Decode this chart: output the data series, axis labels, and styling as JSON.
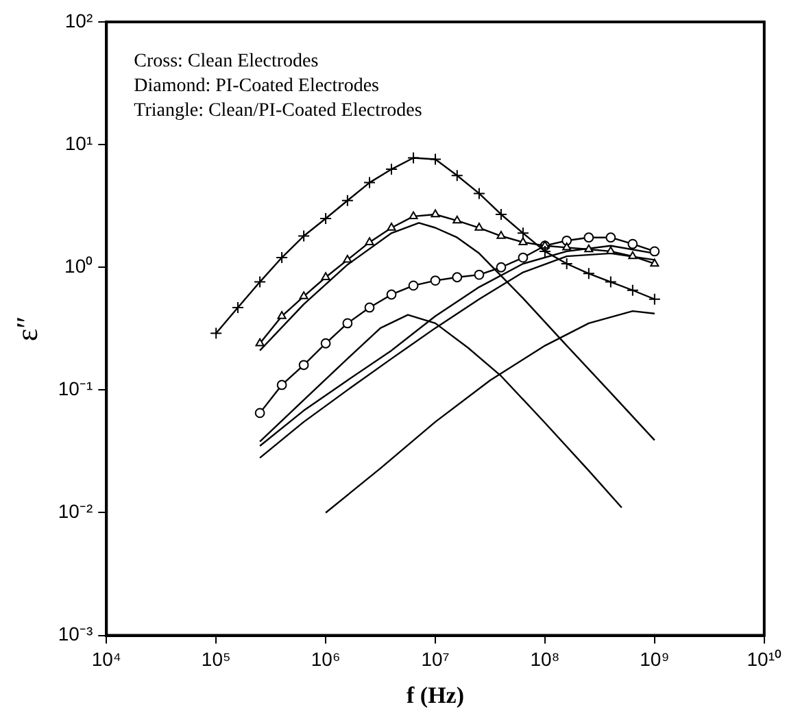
{
  "chart_data": {
    "type": "line",
    "xlabel": "f (Hz)",
    "ylabel": "ε″",
    "log": "xy",
    "grid": false,
    "legend": false,
    "xlim": [
      10000,
      10000000000
    ],
    "ylim": [
      0.001,
      100
    ],
    "xticks": [
      {
        "value": 10000,
        "label": "10⁴"
      },
      {
        "value": 100000,
        "label": "10⁵"
      },
      {
        "value": 1000000,
        "label": "10⁶"
      },
      {
        "value": 10000000,
        "label": "10⁷"
      },
      {
        "value": 100000000,
        "label": "10⁸"
      },
      {
        "value": 1000000000,
        "label": "10⁹"
      },
      {
        "value": 10000000000,
        "label": "10¹⁰"
      }
    ],
    "yticks": [
      {
        "value": 0.001,
        "label": "10⁻³"
      },
      {
        "value": 0.01,
        "label": "10⁻²"
      },
      {
        "value": 0.1,
        "label": "10⁻¹"
      },
      {
        "value": 1,
        "label": "10⁰"
      },
      {
        "value": 10,
        "label": "10¹"
      },
      {
        "value": 100,
        "label": "10²"
      }
    ],
    "annotations": [
      "Cross: Clean Electrodes",
      "Diamond: PI-Coated Electrodes",
      "Triangle: Clean/PI-Coated Electrodes"
    ],
    "series": [
      {
        "color": "#000000",
        "marker": "cross",
        "x": [
          100000,
          158000,
          251000,
          398000,
          631000,
          1000000,
          1580000,
          2510000,
          3980000,
          6310000,
          10000000,
          15800000,
          25100000,
          39800000,
          63100000,
          100000000,
          158000000,
          251000000,
          398000000,
          631000000,
          1000000000
        ],
        "values": [
          0.29,
          0.47,
          0.76,
          1.2,
          1.8,
          2.5,
          3.5,
          4.9,
          6.3,
          7.8,
          7.6,
          5.6,
          4.0,
          2.7,
          1.9,
          1.35,
          1.07,
          0.89,
          0.76,
          0.65,
          0.55
        ]
      },
      {
        "color": "#000000",
        "marker": "triangle",
        "x": [
          251000,
          398000,
          631000,
          1000000,
          1580000,
          2510000,
          3980000,
          6310000,
          10000000,
          15800000,
          25100000,
          39800000,
          63100000,
          100000000,
          158000000,
          251000000,
          398000000,
          631000000,
          1000000000
        ],
        "values": [
          0.24,
          0.4,
          0.58,
          0.83,
          1.15,
          1.6,
          2.1,
          2.6,
          2.7,
          2.4,
          2.1,
          1.8,
          1.6,
          1.5,
          1.45,
          1.4,
          1.35,
          1.23,
          1.07
        ]
      },
      {
        "color": "#000000",
        "marker": "circle",
        "x": [
          251000,
          398000,
          631000,
          1000000,
          1580000,
          2510000,
          3980000,
          6310000,
          10000000,
          15800000,
          25100000,
          39800000,
          63100000,
          100000000,
          158000000,
          251000000,
          398000000,
          631000000,
          1000000000
        ],
        "values": [
          0.065,
          0.11,
          0.16,
          0.24,
          0.35,
          0.47,
          0.6,
          0.71,
          0.78,
          0.83,
          0.87,
          1.0,
          1.2,
          1.5,
          1.65,
          1.75,
          1.75,
          1.55,
          1.35
        ]
      },
      {
        "color": "#000000",
        "marker": "none",
        "x": [
          251000,
          631000,
          1580000,
          3980000,
          7080000,
          10000000,
          15800000,
          25100000,
          63100000,
          158000000,
          398000000,
          1000000000
        ],
        "values": [
          0.21,
          0.5,
          1.05,
          1.9,
          2.3,
          2.1,
          1.75,
          1.3,
          0.56,
          0.23,
          0.095,
          0.039
        ]
      },
      {
        "color": "#000000",
        "marker": "none",
        "x": [
          251000,
          631000,
          1580000,
          3160000,
          5620000,
          10000000,
          20000000,
          39800000,
          100000000,
          251000000,
          501000000
        ],
        "values": [
          0.038,
          0.083,
          0.18,
          0.32,
          0.41,
          0.35,
          0.22,
          0.13,
          0.054,
          0.022,
          0.011
        ]
      },
      {
        "color": "#000000",
        "marker": "none",
        "x": [
          251000,
          631000,
          1580000,
          3980000,
          10000000,
          25100000,
          63100000,
          158000000,
          398000000,
          1000000000
        ],
        "values": [
          0.035,
          0.068,
          0.12,
          0.21,
          0.4,
          0.69,
          1.07,
          1.35,
          1.5,
          1.3
        ]
      },
      {
        "color": "#000000",
        "marker": "none",
        "x": [
          251000,
          631000,
          1580000,
          3980000,
          10000000,
          25100000,
          63100000,
          158000000,
          398000000,
          1000000000
        ],
        "values": [
          0.028,
          0.055,
          0.1,
          0.18,
          0.32,
          0.55,
          0.91,
          1.23,
          1.3,
          1.15
        ]
      },
      {
        "color": "#000000",
        "marker": "none",
        "x": [
          1000000,
          3160000,
          10000000,
          31600000,
          100000000,
          251000000,
          631000000,
          1000000000
        ],
        "values": [
          0.01,
          0.023,
          0.055,
          0.12,
          0.23,
          0.35,
          0.44,
          0.42
        ]
      }
    ]
  }
}
